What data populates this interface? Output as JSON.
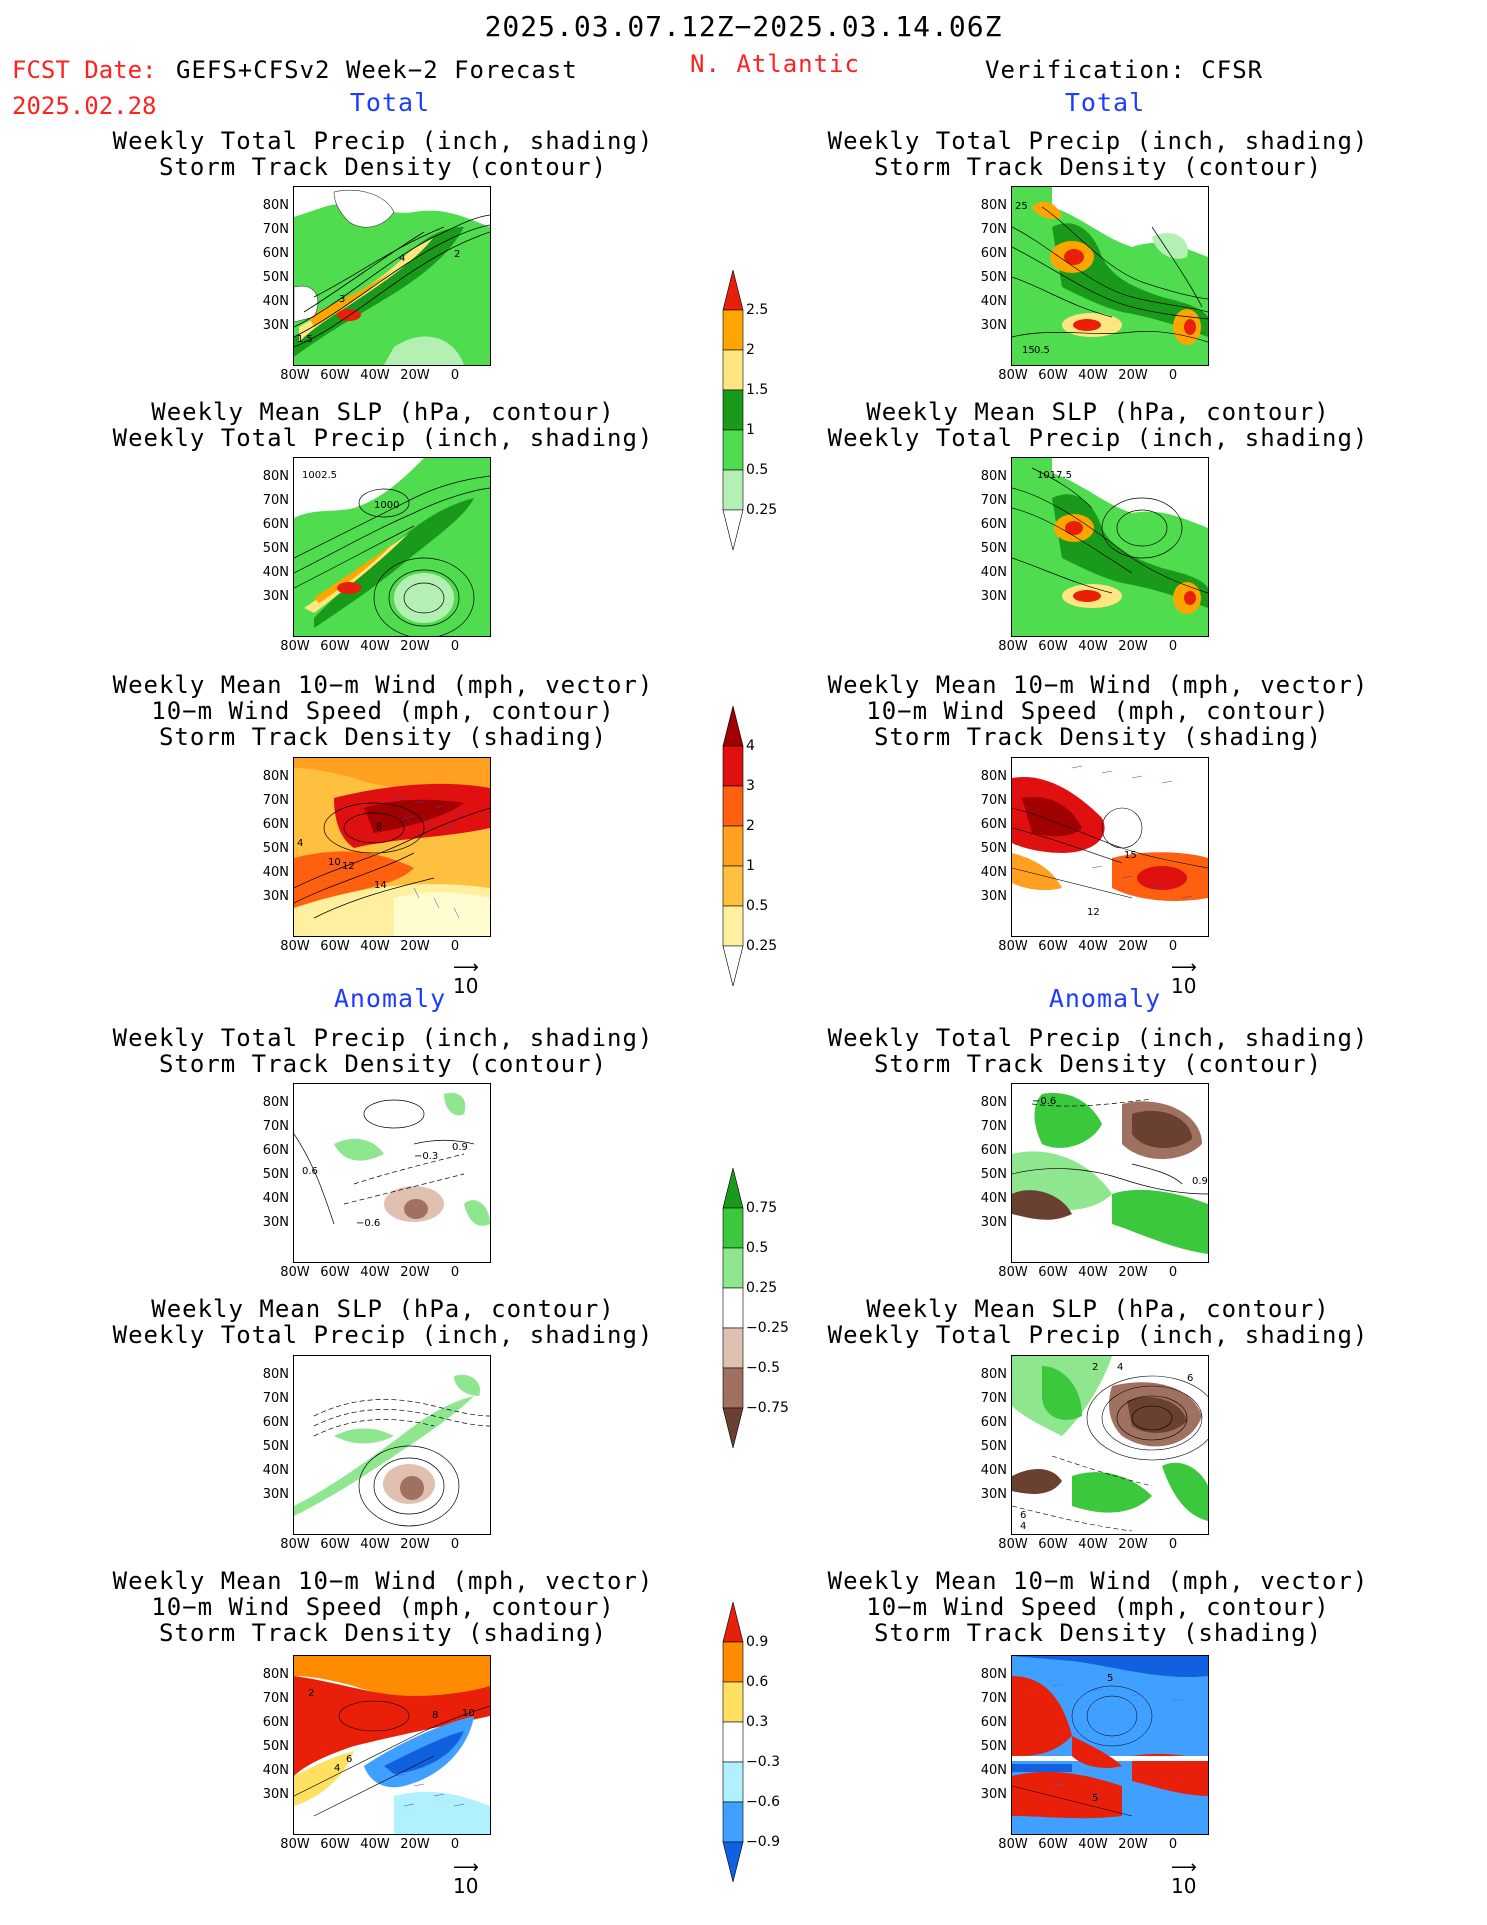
{
  "header": {
    "period": "2025.03.07.12Z−2025.03.14.06Z",
    "region": "N. Atlantic",
    "fcst_label": "FCST Date:",
    "fcst_model": "GEFS+CFSv2 Week−2 Forecast",
    "fcst_date": "2025.02.28",
    "verification": "Verification: CFSR"
  },
  "sections": {
    "total": "Total",
    "anomaly": "Anomaly"
  },
  "titles": {
    "precip_track": [
      "Weekly Total Precip (inch, shading)",
      "Storm Track Density (contour)"
    ],
    "slp_precip": [
      "Weekly Mean SLP (hPa, contour)",
      "Weekly Total Precip (inch, shading)"
    ],
    "wind_track": [
      "Weekly Mean 10−m Wind (mph, vector)",
      "10−m Wind Speed (mph, contour)",
      "Storm Track Density (shading)"
    ]
  },
  "axes": {
    "lat_ticks": [
      "80N",
      "70N",
      "60N",
      "50N",
      "40N",
      "30N"
    ],
    "lon_ticks": [
      "80W",
      "60W",
      "40W",
      "20W",
      "0"
    ]
  },
  "vector_ref": "10",
  "colorbars": {
    "precip_total": {
      "labels": [
        "2.5",
        "2",
        "1.5",
        "1",
        "0.5",
        "0.25"
      ],
      "colors": [
        "#e8200a",
        "#ffa500",
        "#ffe680",
        "#1a9a1a",
        "#4fdc4f",
        "#b4f0b4"
      ]
    },
    "track_total": {
      "labels": [
        "4",
        "3",
        "2",
        "1",
        "0.5",
        "0.25"
      ],
      "colors": [
        "#a00000",
        "#e01010",
        "#ff6010",
        "#ffa020",
        "#ffc040",
        "#fff0a0",
        "#fffcd0"
      ]
    },
    "precip_anom": {
      "labels": [
        "0.75",
        "0.5",
        "0.25",
        "−0.25",
        "−0.5",
        "−0.75"
      ],
      "colors": [
        "#1a9a1a",
        "#3cc83c",
        "#8ee68e",
        "#c8f5c8",
        "#ffffff",
        "#e0c0b0",
        "#a07060",
        "#6a4030"
      ]
    },
    "track_anom": {
      "labels": [
        "0.9",
        "0.6",
        "0.3",
        "−0.3",
        "−0.6",
        "−0.9"
      ],
      "colors": [
        "#e8200a",
        "#ff8c00",
        "#ffe060",
        "#ffffff",
        "#b0f0ff",
        "#40a0ff",
        "#1060e0"
      ]
    }
  },
  "map_labels": {
    "fc_precip_total": [
      "4",
      "2",
      "3",
      "1.5"
    ],
    "vf_precip_total": [
      "25",
      "15",
      "0.5"
    ],
    "fc_slp_total": [
      "1002.5",
      "1000"
    ],
    "vf_slp_total": [
      "1017.5"
    ],
    "fc_wind_total": [
      "8",
      "4",
      "10",
      "12",
      "14"
    ],
    "vf_wind_total": [
      "15",
      "12"
    ],
    "fc_precip_anom": [
      "−0.3",
      "0.9",
      "0.6",
      "−0.6"
    ],
    "vf_precip_anom": [
      "−0.6",
      "0.9"
    ],
    "vf_slp_anom": [
      "2",
      "4",
      "6",
      "6",
      "4"
    ],
    "fc_wind_anom": [
      "2",
      "8",
      "10",
      "6",
      "4"
    ],
    "vf_wind_anom": [
      "5",
      "5"
    ]
  }
}
